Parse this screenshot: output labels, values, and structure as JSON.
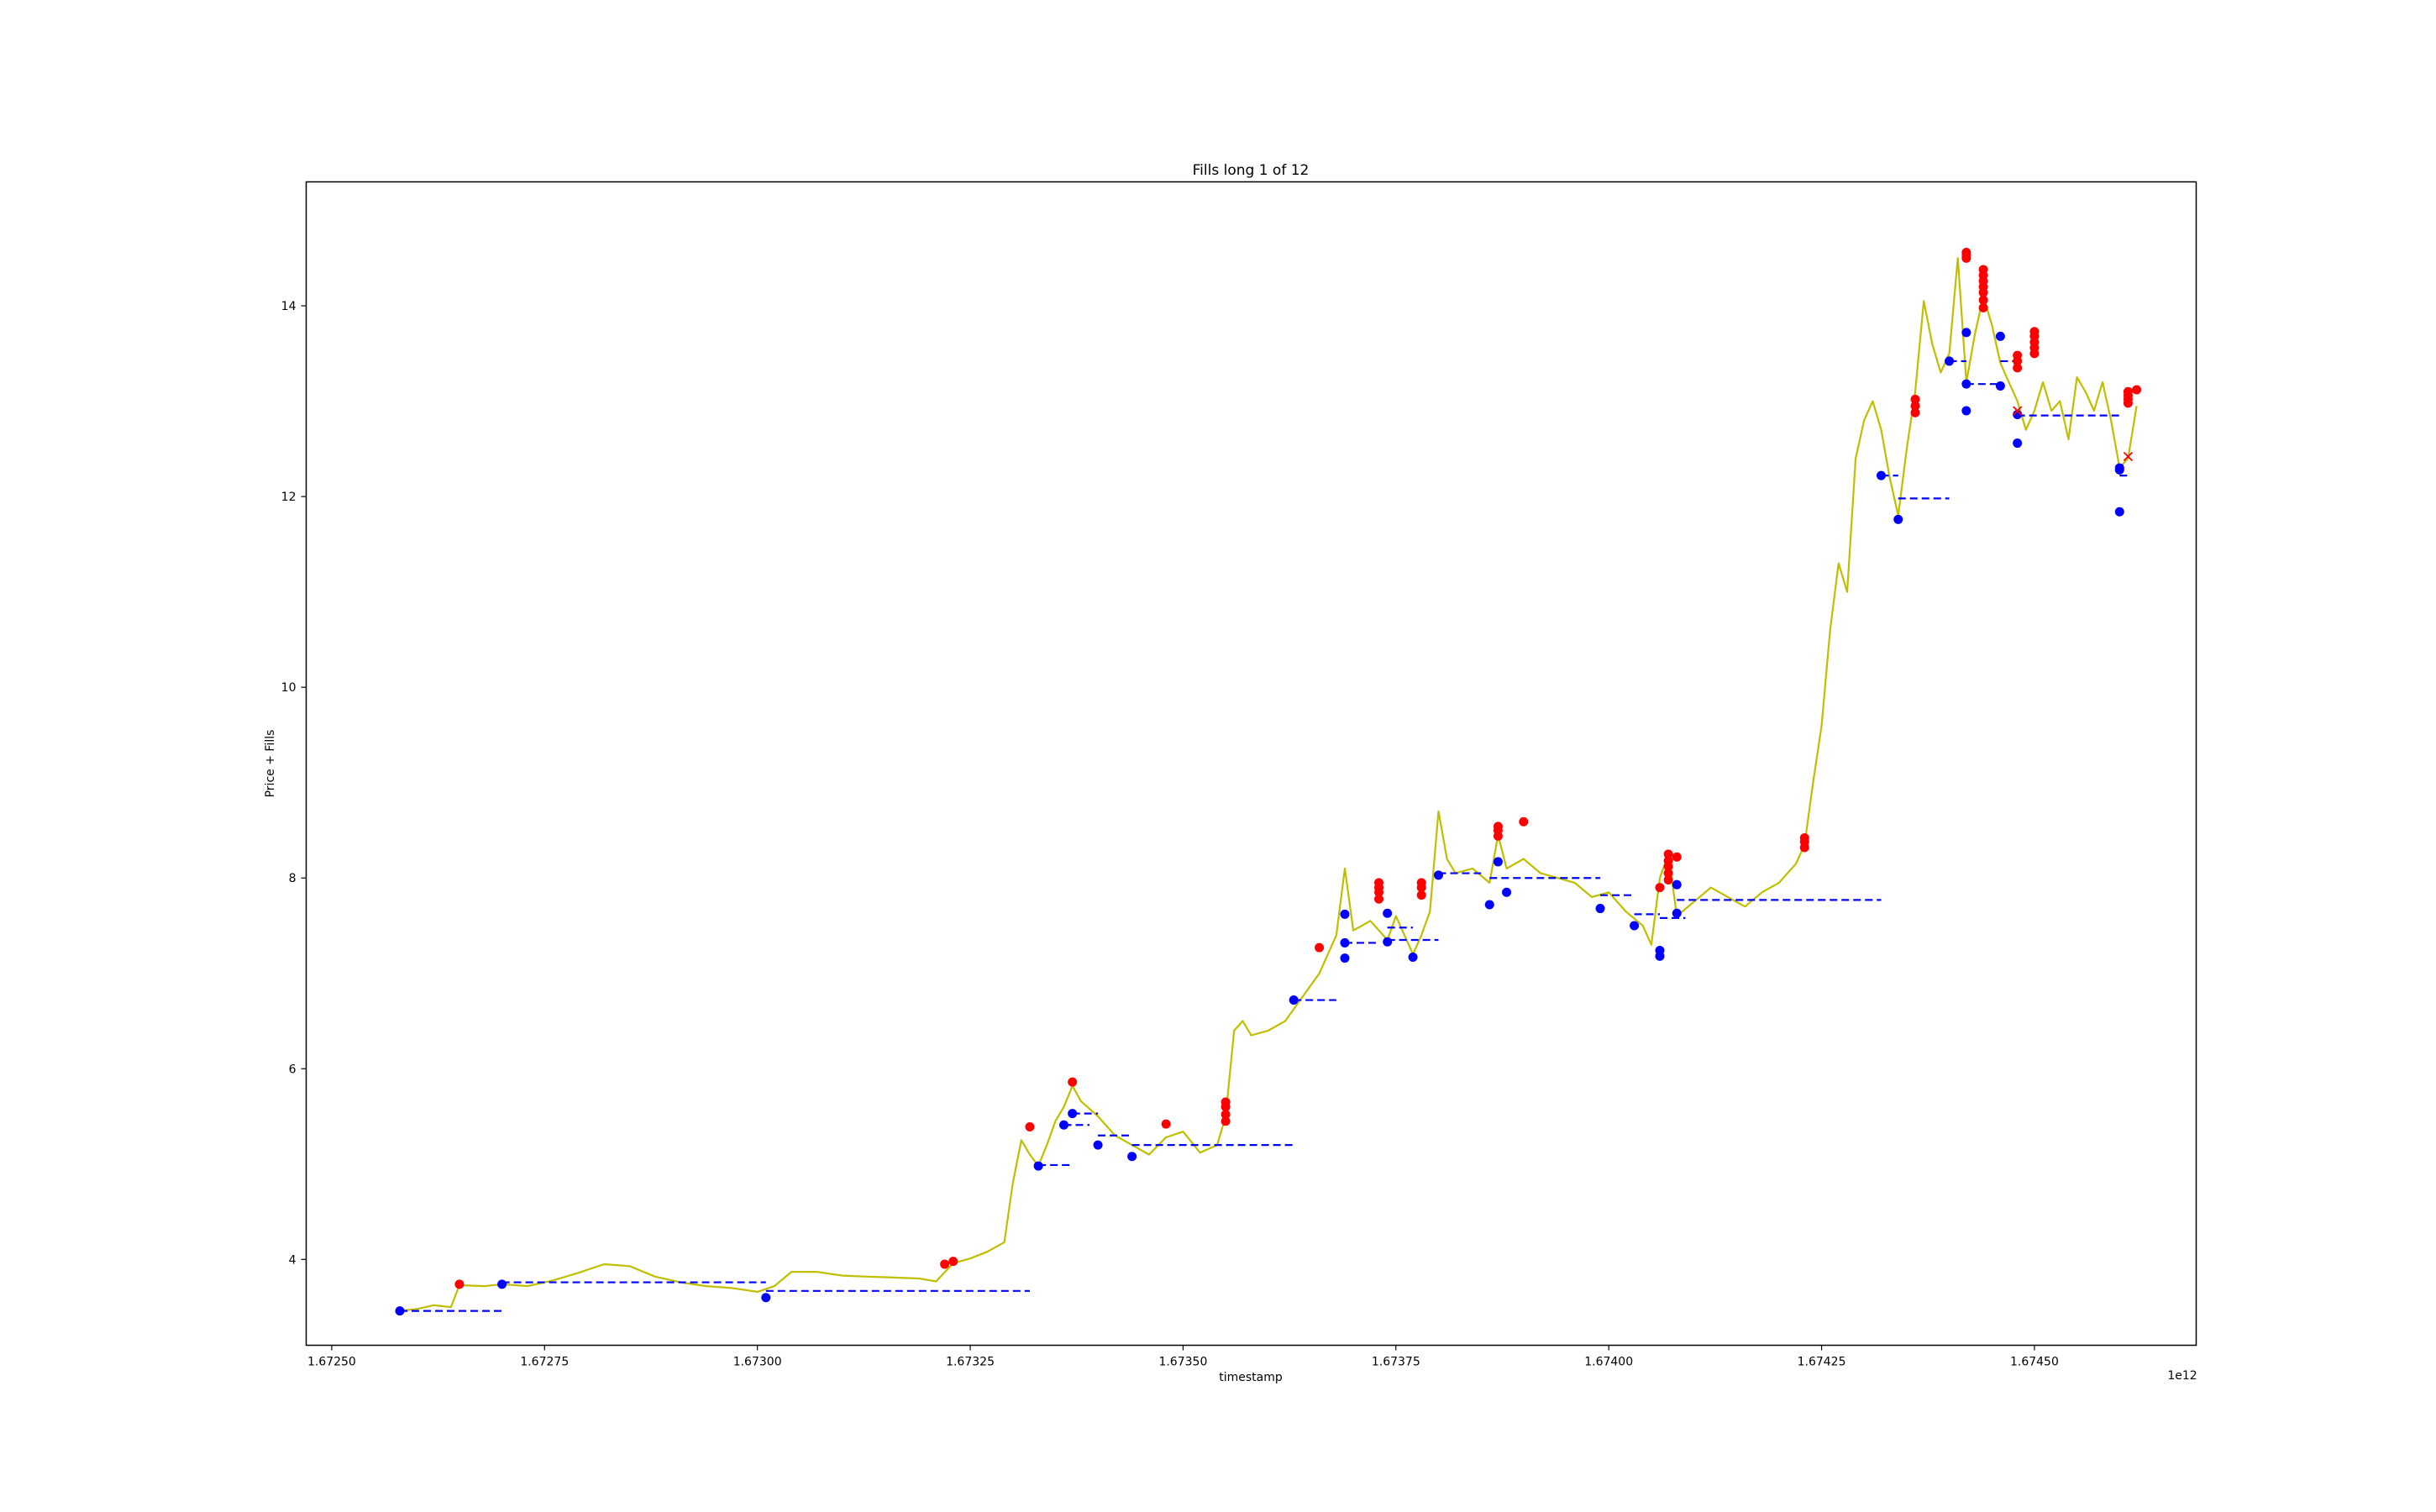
{
  "chart_data": {
    "type": "line",
    "title": "Fills long 1 of 12",
    "xlabel": "timestamp",
    "ylabel": "Price + Fills",
    "x_offset_label": "1e12",
    "xlim": [
      1.67247,
      1.67469
    ],
    "ylim": [
      3.1,
      15.3
    ],
    "x_ticks": [
      1.6725,
      1.67275,
      1.673,
      1.67325,
      1.6735,
      1.67375,
      1.674,
      1.67425,
      1.6745
    ],
    "x_tick_labels": [
      "1.67250",
      "1.67275",
      "1.67300",
      "1.67325",
      "1.67350",
      "1.67375",
      "1.67400",
      "1.67425",
      "1.67450"
    ],
    "y_ticks": [
      4,
      6,
      8,
      10,
      12,
      14
    ],
    "y_tick_labels": [
      "4",
      "6",
      "8",
      "10",
      "12",
      "14"
    ],
    "grid": false,
    "legend": "none",
    "colors": {
      "price": "#bfbf00",
      "buy_fill": "#0000ff",
      "sell_fill": "#ff0000",
      "position_price": "#0000ff"
    },
    "price_series": {
      "x": [
        1.67258,
        1.6726,
        1.67262,
        1.67264,
        1.67265,
        1.67268,
        1.6727,
        1.67273,
        1.67276,
        1.67279,
        1.67282,
        1.67285,
        1.67288,
        1.67291,
        1.67294,
        1.67297,
        1.673,
        1.67302,
        1.67304,
        1.67307,
        1.6731,
        1.67313,
        1.67316,
        1.67319,
        1.67321,
        1.67323,
        1.67325,
        1.67327,
        1.67329,
        1.6733,
        1.67331,
        1.67332,
        1.67333,
        1.67334,
        1.67335,
        1.67336,
        1.67337,
        1.67338,
        1.6734,
        1.67342,
        1.67344,
        1.67346,
        1.67348,
        1.6735,
        1.67352,
        1.67354,
        1.67355,
        1.67356,
        1.67357,
        1.67358,
        1.6736,
        1.67362,
        1.67364,
        1.67366,
        1.67368,
        1.67369,
        1.6737,
        1.67372,
        1.67374,
        1.67375,
        1.67377,
        1.67378,
        1.67379,
        1.6738,
        1.67381,
        1.67382,
        1.67384,
        1.67386,
        1.67387,
        1.67388,
        1.6739,
        1.67392,
        1.67394,
        1.67396,
        1.67398,
        1.674,
        1.67402,
        1.67404,
        1.67405,
        1.67406,
        1.67407,
        1.67408,
        1.6741,
        1.67412,
        1.67414,
        1.67416,
        1.67418,
        1.6742,
        1.67422,
        1.67423,
        1.67424,
        1.67425,
        1.67426,
        1.67427,
        1.67428,
        1.67429,
        1.6743,
        1.67431,
        1.67432,
        1.67433,
        1.67434,
        1.67435,
        1.67436,
        1.67437,
        1.67438,
        1.67439,
        1.6744,
        1.67441,
        1.67442,
        1.67443,
        1.67444,
        1.67445,
        1.67446,
        1.67447,
        1.67448,
        1.67449,
        1.6745,
        1.67451,
        1.67452,
        1.67453,
        1.67454,
        1.67455,
        1.67456,
        1.67457,
        1.67458,
        1.67459,
        1.6746,
        1.67461,
        1.67462
      ],
      "y": [
        3.46,
        3.48,
        3.52,
        3.5,
        3.73,
        3.72,
        3.74,
        3.72,
        3.78,
        3.86,
        3.95,
        3.93,
        3.82,
        3.76,
        3.72,
        3.7,
        3.66,
        3.72,
        3.87,
        3.87,
        3.83,
        3.82,
        3.81,
        3.8,
        3.77,
        3.96,
        4.01,
        4.08,
        4.18,
        4.8,
        5.25,
        5.1,
        4.98,
        5.2,
        5.45,
        5.6,
        5.82,
        5.66,
        5.5,
        5.3,
        5.2,
        5.1,
        5.28,
        5.34,
        5.12,
        5.2,
        5.5,
        6.4,
        6.5,
        6.35,
        6.4,
        6.5,
        6.75,
        7.0,
        7.4,
        8.1,
        7.45,
        7.55,
        7.35,
        7.6,
        7.2,
        7.4,
        7.65,
        8.7,
        8.2,
        8.05,
        8.1,
        7.95,
        8.45,
        8.1,
        8.2,
        8.05,
        8.0,
        7.95,
        7.8,
        7.85,
        7.65,
        7.5,
        7.3,
        8.0,
        8.25,
        7.6,
        7.75,
        7.9,
        7.8,
        7.7,
        7.85,
        7.95,
        8.15,
        8.35,
        9.0,
        9.6,
        10.6,
        11.3,
        11.0,
        12.4,
        12.8,
        13.0,
        12.7,
        12.2,
        11.8,
        12.5,
        13.1,
        14.05,
        13.6,
        13.3,
        13.5,
        14.5,
        13.2,
        13.7,
        14.1,
        13.8,
        13.4,
        13.2,
        13.0,
        12.7,
        12.9,
        13.2,
        12.9,
        13.0,
        12.6,
        13.25,
        13.1,
        12.9,
        13.2,
        12.8,
        12.3,
        12.4,
        12.95
      ],
      "name": ""
    },
    "buy_fills": {
      "x": [
        1.67258,
        1.6727,
        1.67301,
        1.67333,
        1.67336,
        1.67337,
        1.6734,
        1.67344,
        1.67363,
        1.67369,
        1.67369,
        1.67369,
        1.67374,
        1.67374,
        1.67377,
        1.6738,
        1.67386,
        1.67387,
        1.67388,
        1.67399,
        1.67403,
        1.67406,
        1.67406,
        1.67408,
        1.67408,
        1.67432,
        1.67434,
        1.6744,
        1.67442,
        1.67442,
        1.67442,
        1.67446,
        1.67446,
        1.67448,
        1.67448,
        1.6746,
        1.6746,
        1.6746
      ],
      "y": [
        3.46,
        3.74,
        3.6,
        4.98,
        5.41,
        5.53,
        5.2,
        5.08,
        6.72,
        7.62,
        7.32,
        7.16,
        7.63,
        7.33,
        7.17,
        8.03,
        7.72,
        8.17,
        7.85,
        7.68,
        7.5,
        7.24,
        7.18,
        7.93,
        7.63,
        12.22,
        11.76,
        13.42,
        13.72,
        13.18,
        12.9,
        13.68,
        13.16,
        12.86,
        12.56,
        12.3,
        12.28,
        11.84
      ]
    },
    "sell_fills": {
      "x": [
        1.67265,
        1.67322,
        1.67323,
        1.67332,
        1.67337,
        1.67348,
        1.67355,
        1.67355,
        1.67355,
        1.67355,
        1.67366,
        1.67373,
        1.67373,
        1.67373,
        1.67373,
        1.67378,
        1.67378,
        1.67378,
        1.67387,
        1.67387,
        1.67387,
        1.6739,
        1.67406,
        1.67407,
        1.67407,
        1.67407,
        1.67407,
        1.67407,
        1.67408,
        1.67423,
        1.67423,
        1.67423,
        1.67436,
        1.67436,
        1.67436,
        1.67442,
        1.67442,
        1.67442,
        1.67444,
        1.67444,
        1.67444,
        1.67444,
        1.67444,
        1.67444,
        1.67444,
        1.67448,
        1.67448,
        1.67448,
        1.6745,
        1.6745,
        1.6745,
        1.6745,
        1.6745,
        1.67461,
        1.67461,
        1.67461,
        1.67461,
        1.67462
      ],
      "y": [
        3.74,
        3.95,
        3.98,
        5.39,
        5.86,
        5.42,
        5.45,
        5.52,
        5.6,
        5.65,
        7.27,
        7.78,
        7.85,
        7.9,
        7.95,
        7.82,
        7.9,
        7.95,
        8.44,
        8.5,
        8.54,
        8.59,
        7.9,
        7.98,
        8.05,
        8.12,
        8.18,
        8.25,
        8.22,
        8.32,
        8.38,
        8.42,
        12.88,
        12.95,
        13.02,
        14.5,
        14.53,
        14.56,
        13.98,
        14.06,
        14.14,
        14.2,
        14.26,
        14.32,
        14.38,
        13.35,
        13.42,
        13.48,
        13.5,
        13.56,
        13.62,
        13.68,
        13.73,
        12.98,
        13.02,
        13.06,
        13.1,
        13.12
      ]
    },
    "position_price_segments": [
      {
        "x0": 1.67258,
        "x1": 1.6727,
        "y": 3.46
      },
      {
        "x0": 1.6727,
        "x1": 1.67301,
        "y": 3.76
      },
      {
        "x0": 1.67301,
        "x1": 1.67332,
        "y": 3.67
      },
      {
        "x0": 1.67333,
        "x1": 1.67337,
        "y": 4.99
      },
      {
        "x0": 1.67336,
        "x1": 1.67339,
        "y": 5.41
      },
      {
        "x0": 1.67337,
        "x1": 1.6734,
        "y": 5.53
      },
      {
        "x0": 1.6734,
        "x1": 1.67344,
        "y": 5.3
      },
      {
        "x0": 1.67344,
        "x1": 1.67363,
        "y": 5.2
      },
      {
        "x0": 1.67363,
        "x1": 1.67368,
        "y": 6.72
      },
      {
        "x0": 1.67369,
        "x1": 1.67373,
        "y": 7.32
      },
      {
        "x0": 1.67374,
        "x1": 1.67377,
        "y": 7.48
      },
      {
        "x0": 1.67374,
        "x1": 1.6738,
        "y": 7.35
      },
      {
        "x0": 1.6738,
        "x1": 1.67385,
        "y": 8.05
      },
      {
        "x0": 1.67386,
        "x1": 1.67399,
        "y": 8.0
      },
      {
        "x0": 1.67399,
        "x1": 1.67403,
        "y": 7.82
      },
      {
        "x0": 1.67403,
        "x1": 1.67406,
        "y": 7.62
      },
      {
        "x0": 1.67406,
        "x1": 1.67409,
        "y": 7.58
      },
      {
        "x0": 1.67408,
        "x1": 1.67432,
        "y": 7.77
      },
      {
        "x0": 1.67432,
        "x1": 1.67434,
        "y": 12.22
      },
      {
        "x0": 1.67434,
        "x1": 1.6744,
        "y": 11.98
      },
      {
        "x0": 1.6744,
        "x1": 1.67442,
        "y": 13.42
      },
      {
        "x0": 1.67442,
        "x1": 1.67446,
        "y": 13.18
      },
      {
        "x0": 1.67446,
        "x1": 1.67448,
        "y": 13.42
      },
      {
        "x0": 1.67448,
        "x1": 1.6746,
        "y": 12.85
      },
      {
        "x0": 1.6746,
        "x1": 1.67461,
        "y": 12.22
      }
    ],
    "close_marks": {
      "x": [
        1.67448,
        1.67461
      ],
      "y": [
        12.9,
        12.42
      ]
    }
  }
}
